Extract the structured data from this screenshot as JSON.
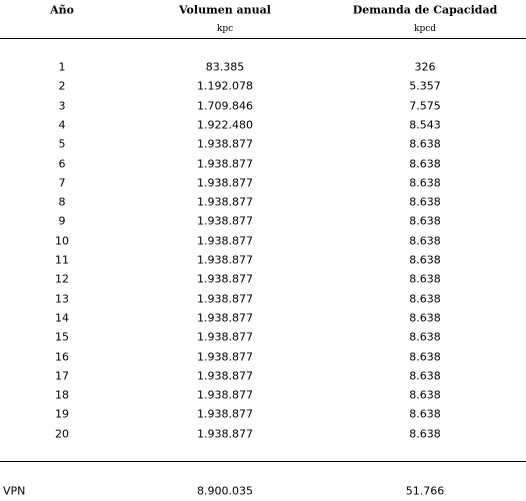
{
  "table": {
    "header": [
      "Año",
      "Volumen anual",
      "Demanda de Capacidad"
    ],
    "units": [
      "kpc",
      "kpcd"
    ],
    "rows": [
      [
        "1",
        "83.385",
        "326"
      ],
      [
        "2",
        "1.192.078",
        "5.357"
      ],
      [
        "3",
        "1.709.846",
        "7.575"
      ],
      [
        "4",
        "1.922.480",
        "8.543"
      ],
      [
        "5",
        "1.938.877",
        "8.638"
      ],
      [
        "6",
        "1.938.877",
        "8.638"
      ],
      [
        "7",
        "1.938.877",
        "8.638"
      ],
      [
        "8",
        "1.938.877",
        "8.638"
      ],
      [
        "9",
        "1.938.877",
        "8.638"
      ],
      [
        "10",
        "1.938.877",
        "8.638"
      ],
      [
        "11",
        "1.938.877",
        "8.638"
      ],
      [
        "12",
        "1.938.877",
        "8.638"
      ],
      [
        "13",
        "1.938.877",
        "8.638"
      ],
      [
        "14",
        "1.938.877",
        "8.638"
      ],
      [
        "15",
        "1.938.877",
        "8.638"
      ],
      [
        "16",
        "1.938.877",
        "8.638"
      ],
      [
        "17",
        "1.938.877",
        "8.638"
      ],
      [
        "18",
        "1.938.877",
        "8.638"
      ],
      [
        "19",
        "1.938.877",
        "8.638"
      ],
      [
        "20",
        "1.938.877",
        "8.638"
      ]
    ],
    "footer": [
      "VPN",
      "8.900.035",
      "51.766"
    ]
  }
}
